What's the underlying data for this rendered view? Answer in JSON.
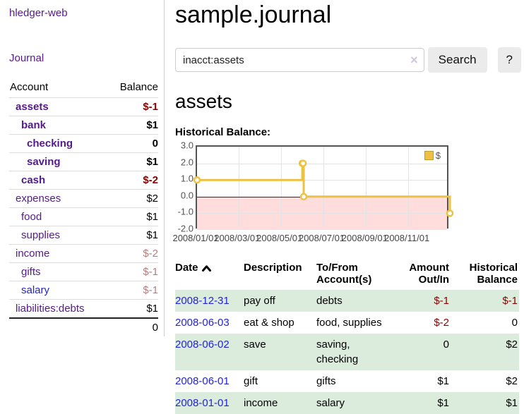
{
  "colors": {
    "link_purple": "#551a8b",
    "link_blue": "#2222dd",
    "negative_dark": "#8b0000",
    "negative_light": "#b97c7c",
    "row_stripe_green": "#dcecdc",
    "chart_line_gold": "#edc240",
    "chart_negative_region": "#ffdddd",
    "chart_zero_line": "#8b0000",
    "chart_border": "#545454"
  },
  "sidebar": {
    "app_title": "hledger-web",
    "journal_link": "Journal",
    "accounts": {
      "account_header": "Account",
      "balance_header": "Balance",
      "rows": [
        {
          "name": "assets",
          "balance": "$-1"
        },
        {
          "name": "bank",
          "balance": "$1"
        },
        {
          "name": "checking",
          "balance": "0"
        },
        {
          "name": "saving",
          "balance": "$1"
        },
        {
          "name": "cash",
          "balance": "$-2"
        },
        {
          "name": "expenses",
          "balance": "$2"
        },
        {
          "name": "food",
          "balance": "$1"
        },
        {
          "name": "supplies",
          "balance": "$1"
        },
        {
          "name": "income",
          "balance": "$-2"
        },
        {
          "name": "gifts",
          "balance": "$-1"
        },
        {
          "name": "salary",
          "balance": "$-1"
        },
        {
          "name": "liabilities:debts",
          "balance": "$1"
        }
      ],
      "total": "0"
    }
  },
  "header": {
    "title": "sample.journal"
  },
  "search": {
    "value": "inacct:assets",
    "clear_icon": "×",
    "search_label": "Search",
    "help_label": "?"
  },
  "account_page": {
    "title": "assets",
    "chart_caption": "Historical Balance:"
  },
  "chart_data": {
    "type": "line",
    "title": "Historical Balance",
    "step": true,
    "legend": "$",
    "legend_position": "top-right",
    "x_range": [
      "2008/01/01",
      "2008/12/31"
    ],
    "ylim": [
      -2,
      3
    ],
    "y_ticks": [
      "3.0",
      "2.0",
      "1.0",
      "0.0",
      "-1.0",
      "-2.0"
    ],
    "x_ticks": [
      "2008/01/01",
      "2008/03/01",
      "2008/05/01",
      "2008/07/01",
      "2008/09/01",
      "2008/11/01"
    ],
    "series": [
      {
        "name": "$",
        "color": "#edc240",
        "points": [
          {
            "date": "2008/01/01",
            "value": 1
          },
          {
            "date": "2008/06/01",
            "value": 2
          },
          {
            "date": "2008/06/02",
            "value": 2
          },
          {
            "date": "2008/06/03",
            "value": 0
          },
          {
            "date": "2008/12/31",
            "value": -1
          }
        ]
      }
    ],
    "grid": true,
    "negative_region": true
  },
  "transactions": {
    "headers": {
      "date": "Date",
      "description": "Description",
      "accounts": "To/From Account(s)",
      "amount": "Amount Out/In",
      "balance": "Historical Balance"
    },
    "rows": [
      {
        "date": "2008-12-31",
        "description": "pay off",
        "accounts": "debts",
        "amount": "$-1",
        "balance": "$-1"
      },
      {
        "date": "2008-06-03",
        "description": "eat & shop",
        "accounts": "food, supplies",
        "amount": "$-2",
        "balance": "0"
      },
      {
        "date": "2008-06-02",
        "description": "save",
        "accounts": "saving, checking",
        "amount": "0",
        "balance": "$2"
      },
      {
        "date": "2008-06-01",
        "description": "gift",
        "accounts": "gifts",
        "amount": "$1",
        "balance": "$2"
      },
      {
        "date": "2008-01-01",
        "description": "income",
        "accounts": "salary",
        "amount": "$1",
        "balance": "$1"
      }
    ]
  }
}
